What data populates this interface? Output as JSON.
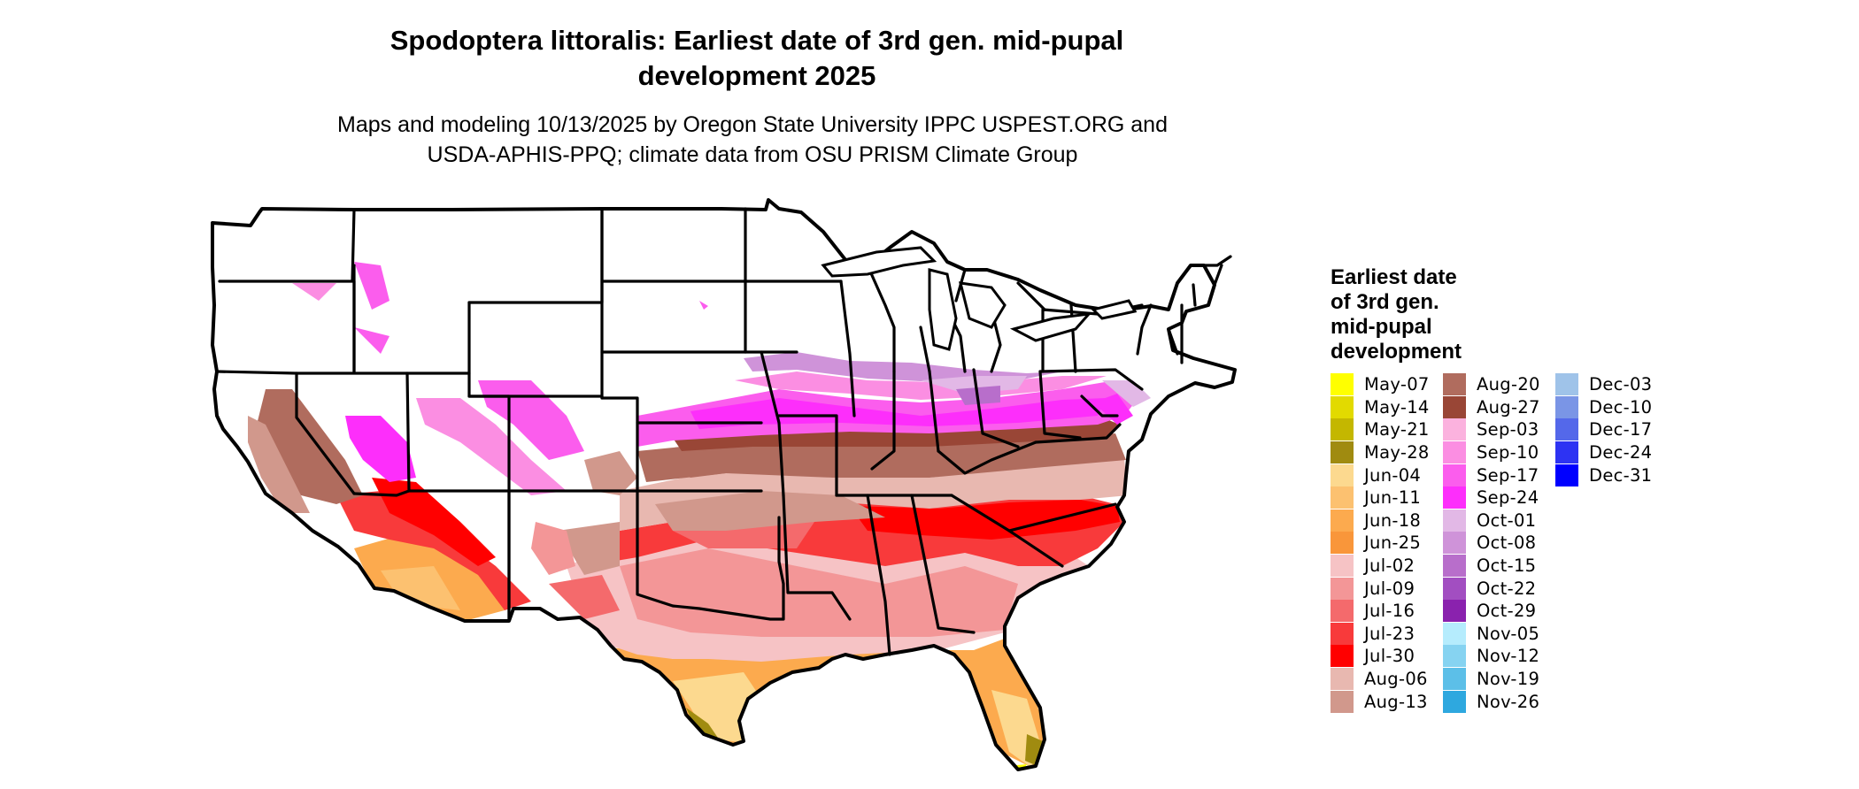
{
  "title_line1": "Spodoptera littoralis: Earliest date of 3rd gen. mid-pupal",
  "title_line2": "development 2025",
  "subtitle_line1": "Maps and modeling 10/13/2025 by Oregon State University IPPC USPEST.ORG and",
  "subtitle_line2": "USDA-APHIS-PPQ; climate data from OSU PRISM Climate Group",
  "legend": {
    "title_lines": [
      "Earliest date",
      "of 3rd gen.",
      "mid-pupal",
      "development"
    ],
    "items": [
      {
        "label": "May-07",
        "color": "#ffff00"
      },
      {
        "label": "May-14",
        "color": "#e2da00"
      },
      {
        "label": "May-21",
        "color": "#c4b700"
      },
      {
        "label": "May-28",
        "color": "#a08b10"
      },
      {
        "label": "Jun-04",
        "color": "#fcd98f"
      },
      {
        "label": "Jun-11",
        "color": "#fcc170"
      },
      {
        "label": "Jun-18",
        "color": "#fcaa4e"
      },
      {
        "label": "Jun-25",
        "color": "#f9963a"
      },
      {
        "label": "Jul-02",
        "color": "#f6c3c5"
      },
      {
        "label": "Jul-09",
        "color": "#f39697"
      },
      {
        "label": "Jul-16",
        "color": "#f46a6c"
      },
      {
        "label": "Jul-23",
        "color": "#f83a3b"
      },
      {
        "label": "Jul-30",
        "color": "#ff0000"
      },
      {
        "label": "Aug-06",
        "color": "#e8b8b0"
      },
      {
        "label": "Aug-13",
        "color": "#d1988c"
      },
      {
        "label": "Aug-20",
        "color": "#b06c5e"
      },
      {
        "label": "Aug-27",
        "color": "#994636"
      },
      {
        "label": "Sep-03",
        "color": "#fbb2de"
      },
      {
        "label": "Sep-10",
        "color": "#fb8ee2"
      },
      {
        "label": "Sep-17",
        "color": "#fb5ded"
      },
      {
        "label": "Sep-24",
        "color": "#fd2efb"
      },
      {
        "label": "Oct-01",
        "color": "#e2b8e6"
      },
      {
        "label": "Oct-08",
        "color": "#cf93d9"
      },
      {
        "label": "Oct-15",
        "color": "#b86ecb"
      },
      {
        "label": "Oct-22",
        "color": "#a24ec1"
      },
      {
        "label": "Oct-29",
        "color": "#8a22ae"
      },
      {
        "label": "Nov-05",
        "color": "#b5ecfd"
      },
      {
        "label": "Nov-12",
        "color": "#86d3f1"
      },
      {
        "label": "Nov-19",
        "color": "#5cbfe8"
      },
      {
        "label": "Nov-26",
        "color": "#2ea8df"
      },
      {
        "label": "Dec-03",
        "color": "#9fc3e9"
      },
      {
        "label": "Dec-10",
        "color": "#7a95e6"
      },
      {
        "label": "Dec-17",
        "color": "#5468ea"
      },
      {
        "label": "Dec-24",
        "color": "#2d33f3"
      },
      {
        "label": "Dec-31",
        "color": "#0000ff"
      }
    ]
  }
}
